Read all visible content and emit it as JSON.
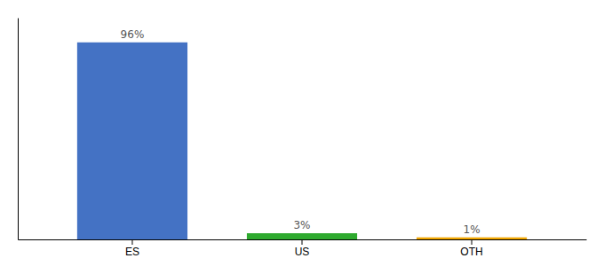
{
  "chart_data": {
    "type": "bar",
    "categories": [
      "ES",
      "US",
      "OTH"
    ],
    "values": [
      96,
      3,
      1
    ],
    "value_labels": [
      "96%",
      "3%",
      "1%"
    ],
    "colors": [
      "#4472c4",
      "#2eaa2e",
      "#f0a500"
    ],
    "ylim": [
      0,
      108
    ],
    "data_labels": true,
    "tick_labels": "x"
  }
}
